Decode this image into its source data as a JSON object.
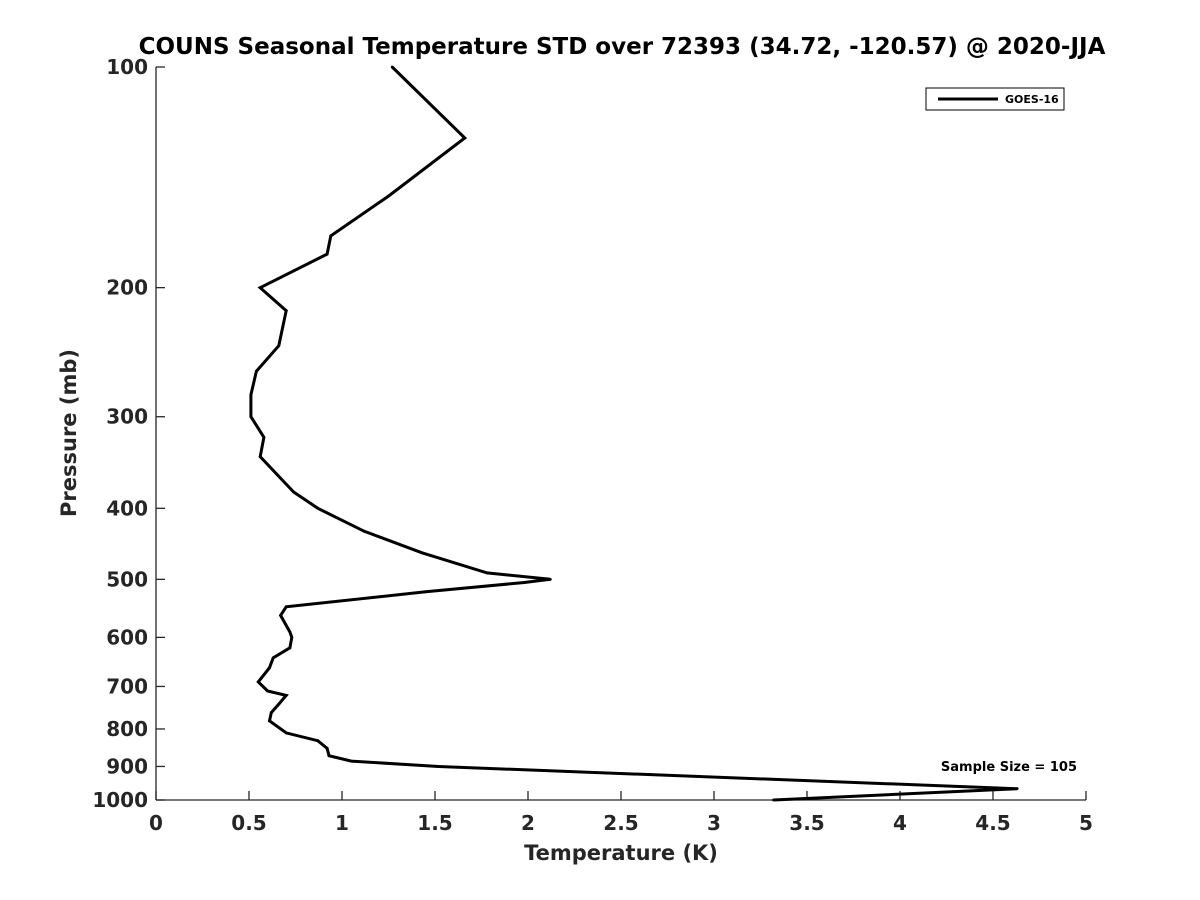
{
  "chart_data": {
    "type": "line",
    "title": "COUNS Seasonal Temperature STD over 72393 (34.72, -120.57) @ 2020-JJA",
    "xlabel": "Temperature (K)",
    "ylabel": "Pressure (mb)",
    "xlim": [
      0,
      5
    ],
    "ylim": [
      100,
      1000
    ],
    "yscale": "log",
    "y_reversed": true,
    "grid": false,
    "x_ticks": [
      0,
      0.5,
      1,
      1.5,
      2,
      2.5,
      3,
      3.5,
      4,
      4.5,
      5
    ],
    "x_tick_labels": [
      "0",
      "0.5",
      "1",
      "1.5",
      "2",
      "2.5",
      "3",
      "3.5",
      "4",
      "4.5",
      "5"
    ],
    "y_ticks": [
      100,
      200,
      300,
      400,
      500,
      600,
      700,
      800,
      900,
      1000
    ],
    "y_tick_labels": [
      "100",
      "200",
      "300",
      "400",
      "500",
      "600",
      "700",
      "800",
      "900",
      "1000"
    ],
    "legend": {
      "position": "top-right",
      "entries": [
        "GOES-16"
      ]
    },
    "annotations": [
      {
        "text": "Sample Size = 105",
        "position": "bottom-right"
      }
    ],
    "series": [
      {
        "name": "GOES-16",
        "color": "#000000",
        "points": [
          [
            1.27,
            100
          ],
          [
            1.66,
            125
          ],
          [
            1.25,
            150
          ],
          [
            0.94,
            170
          ],
          [
            0.92,
            180
          ],
          [
            0.56,
            200
          ],
          [
            0.7,
            215
          ],
          [
            0.66,
            240
          ],
          [
            0.54,
            260
          ],
          [
            0.51,
            280
          ],
          [
            0.51,
            300
          ],
          [
            0.58,
            320
          ],
          [
            0.56,
            340
          ],
          [
            0.74,
            380
          ],
          [
            0.87,
            400
          ],
          [
            1.12,
            430
          ],
          [
            1.43,
            460
          ],
          [
            1.78,
            490
          ],
          [
            2.12,
            500
          ],
          [
            1.98,
            505
          ],
          [
            1.45,
            520
          ],
          [
            0.7,
            545
          ],
          [
            0.67,
            560
          ],
          [
            0.72,
            590
          ],
          [
            0.73,
            600
          ],
          [
            0.72,
            620
          ],
          [
            0.63,
            640
          ],
          [
            0.61,
            660
          ],
          [
            0.55,
            690
          ],
          [
            0.6,
            710
          ],
          [
            0.7,
            720
          ],
          [
            0.66,
            740
          ],
          [
            0.62,
            760
          ],
          [
            0.61,
            780
          ],
          [
            0.7,
            810
          ],
          [
            0.87,
            830
          ],
          [
            0.92,
            850
          ],
          [
            0.93,
            870
          ],
          [
            1.05,
            885
          ],
          [
            1.52,
            900
          ],
          [
            4.63,
            965
          ],
          [
            3.32,
            1000
          ]
        ]
      }
    ]
  }
}
